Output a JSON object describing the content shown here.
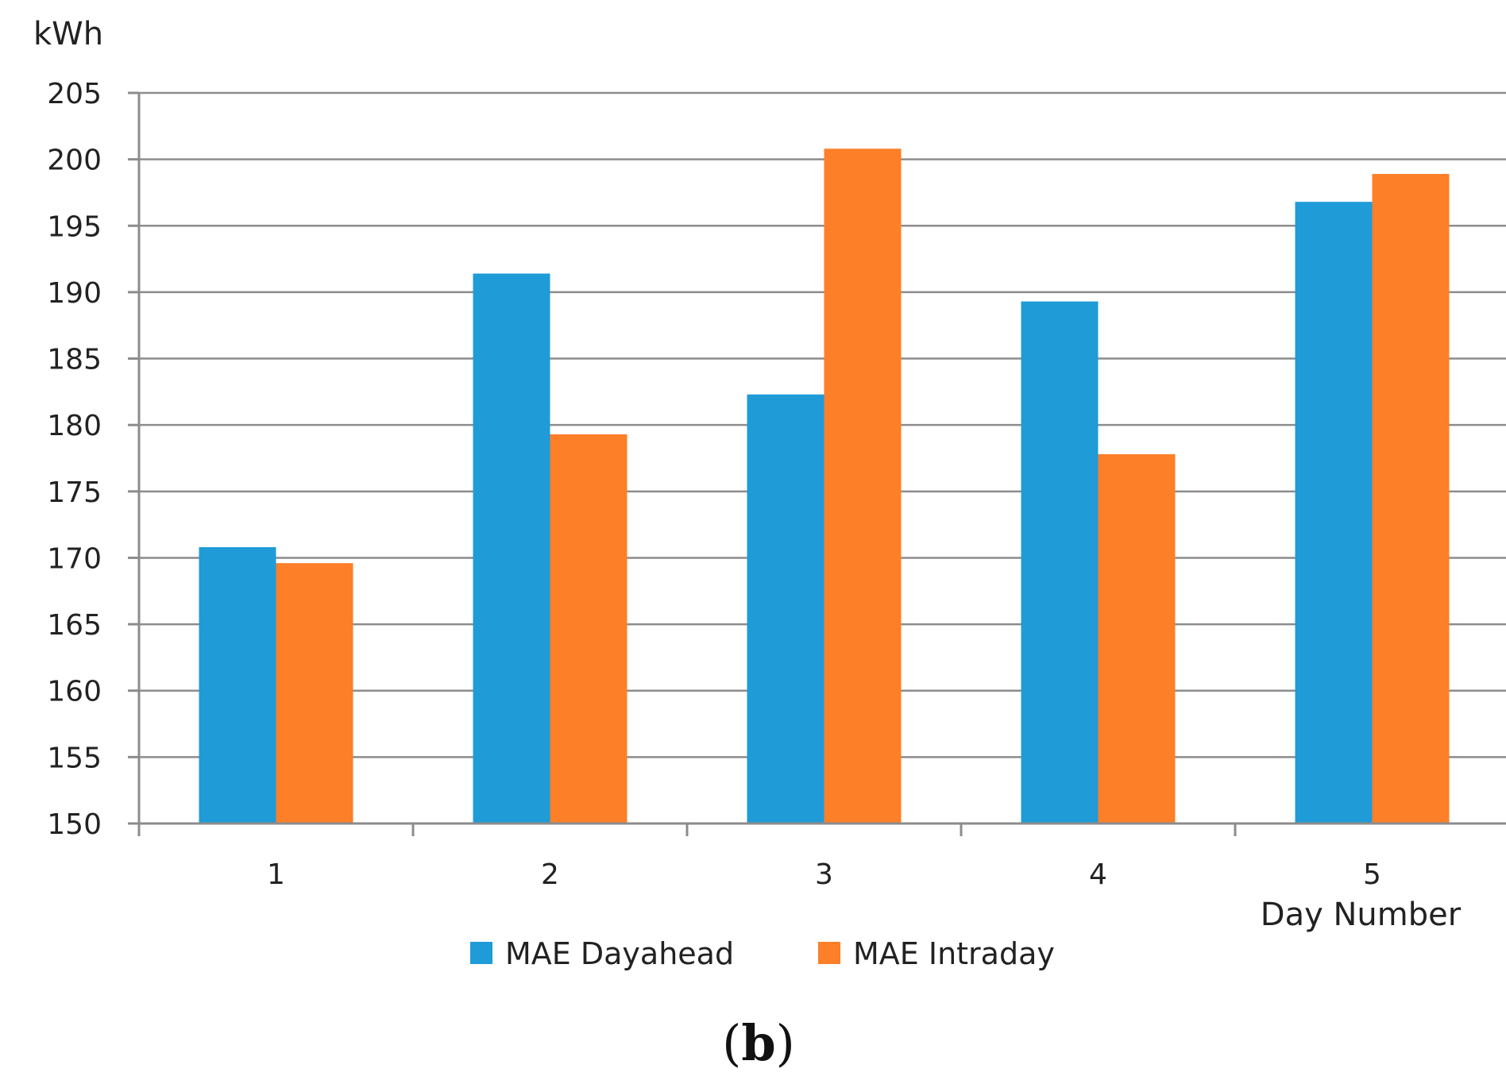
{
  "chart_data": {
    "type": "bar",
    "title": "",
    "ylabel": "kWh",
    "xlabel": "Day Number",
    "categories": [
      "1",
      "2",
      "3",
      "4",
      "5"
    ],
    "series": [
      {
        "name": "MAE Dayahead",
        "color": "#1f9bd7",
        "values": [
          170.8,
          191.4,
          182.3,
          189.3,
          196.8
        ]
      },
      {
        "name": "MAE Intraday",
        "color": "#fd7f28",
        "values": [
          169.6,
          179.3,
          200.8,
          177.8,
          198.9
        ]
      }
    ],
    "ylim": [
      150,
      205
    ],
    "yticks": [
      150,
      155,
      160,
      165,
      170,
      175,
      180,
      185,
      190,
      195,
      200,
      205
    ],
    "grid": true,
    "legend_position": "bottom",
    "panel_label": {
      "open": "(",
      "letter": "b",
      "close": ")"
    }
  }
}
